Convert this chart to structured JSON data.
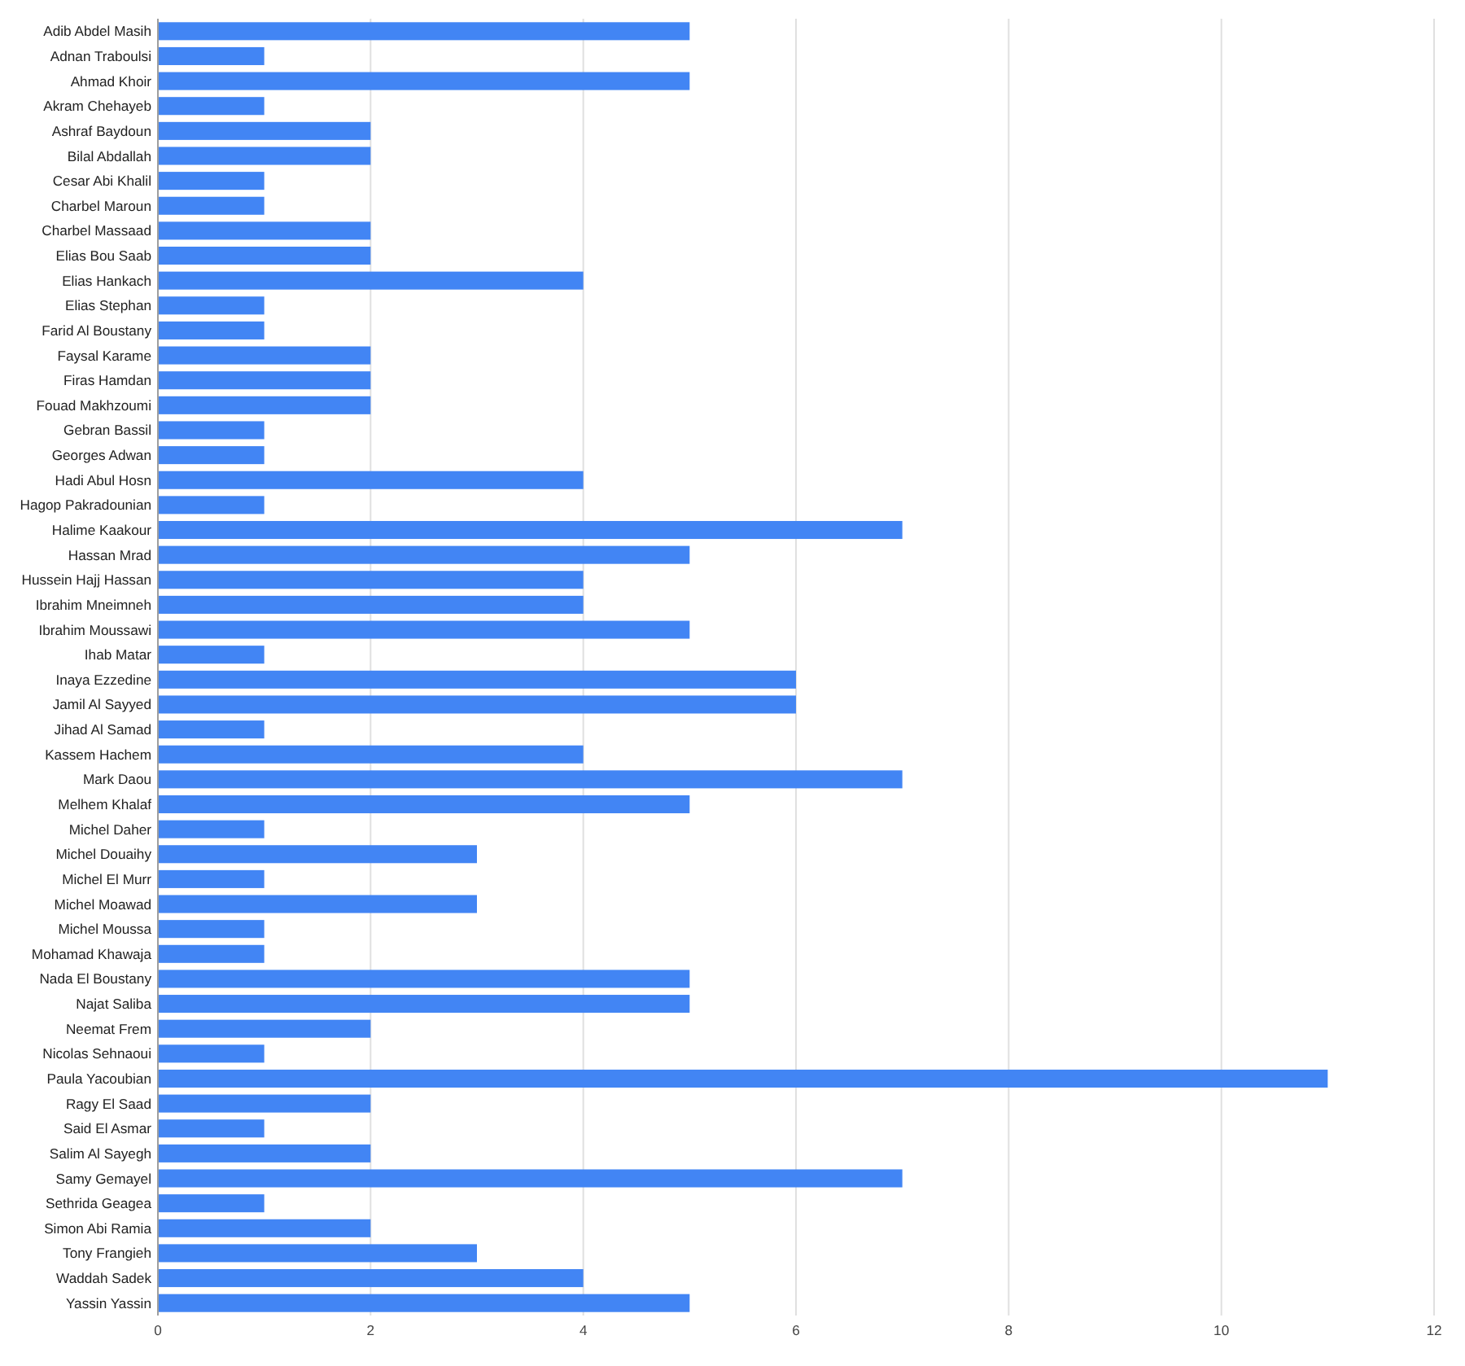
{
  "chart_data": {
    "type": "bar",
    "orientation": "horizontal",
    "categories": [
      "Adib Abdel Masih",
      "Adnan Traboulsi",
      "Ahmad Khoir",
      "Akram Chehayeb",
      "Ashraf Baydoun",
      "Bilal Abdallah",
      "Cesar Abi Khalil",
      "Charbel Maroun",
      "Charbel Massaad",
      "Elias Bou Saab",
      "Elias Hankach",
      "Elias Stephan",
      "Farid Al Boustany",
      "Faysal Karame",
      "Firas Hamdan",
      "Fouad Makhzoumi",
      "Gebran Bassil",
      "Georges Adwan",
      "Hadi Abul Hosn",
      "Hagop Pakradounian",
      "Halime Kaakour",
      "Hassan Mrad",
      "Hussein Hajj Hassan",
      "Ibrahim Mneimneh",
      "Ibrahim Moussawi",
      "Ihab Matar",
      "Inaya Ezzedine",
      "Jamil Al Sayyed",
      "Jihad Al Samad",
      "Kassem Hachem",
      "Mark Daou",
      "Melhem Khalaf",
      "Michel Daher",
      "Michel Douaihy",
      "Michel El Murr",
      "Michel Moawad",
      "Michel Moussa",
      "Mohamad Khawaja",
      "Nada El Boustany",
      "Najat Saliba",
      "Neemat Frem",
      "Nicolas Sehnaoui",
      "Paula Yacoubian",
      "Ragy El Saad",
      "Said El Asmar",
      "Salim Al Sayegh",
      "Samy Gemayel",
      "Sethrida Geagea",
      "Simon Abi Ramia",
      "Tony Frangieh",
      "Waddah Sadek",
      "Yassin Yassin"
    ],
    "values": [
      5,
      1,
      5,
      1,
      2,
      2,
      1,
      1,
      2,
      2,
      4,
      1,
      1,
      2,
      2,
      2,
      1,
      1,
      4,
      1,
      7,
      5,
      4,
      4,
      5,
      1,
      6,
      6,
      1,
      4,
      7,
      5,
      1,
      3,
      1,
      3,
      1,
      1,
      5,
      5,
      2,
      1,
      11,
      2,
      1,
      2,
      7,
      1,
      2,
      3,
      4,
      5
    ],
    "color": "#4285f4",
    "xlim": [
      0,
      12
    ],
    "xticks": [
      0,
      2,
      4,
      6,
      8,
      10,
      12
    ],
    "grid": "x"
  }
}
